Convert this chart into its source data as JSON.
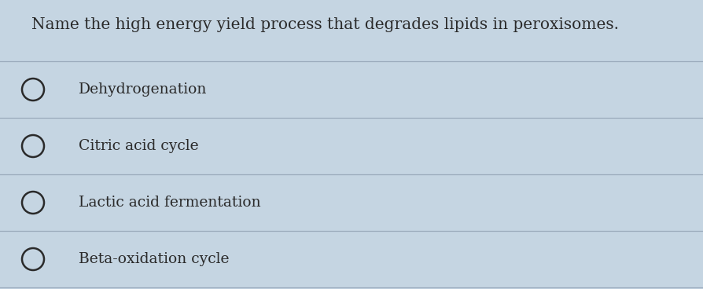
{
  "question": "Name the high energy yield process that degrades lipids in peroxisomes.",
  "options": [
    "Dehydrogenation",
    "Citric acid cycle",
    "Lactic acid fermentation",
    "Beta-oxidation cycle"
  ],
  "background_color": "#c5d5e2",
  "text_color": "#2a2a2a",
  "line_color": "#9aaabb",
  "question_fontsize": 14.5,
  "option_fontsize": 13.5,
  "figwidth": 8.94,
  "figheight": 3.68,
  "dpi": 100
}
